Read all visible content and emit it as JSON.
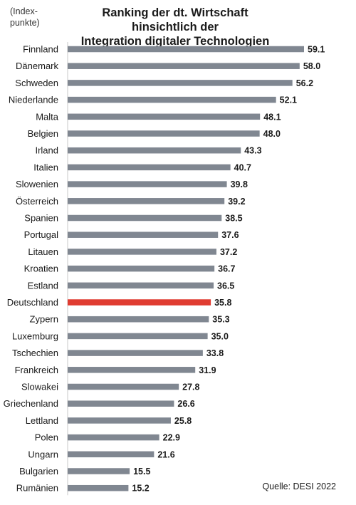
{
  "chart_data": {
    "type": "bar",
    "orientation": "horizontal",
    "title": "Ranking der dt. Wirtschaft hinsichtlich der",
    "subtitle": "Integration digitaler Technologien",
    "unit_label": "(Index-\npunkte)",
    "source": "Quelle: DESI 2022",
    "categories": [
      "Finnland",
      "Dänemark",
      "Schweden",
      "Niederlande",
      "Malta",
      "Belgien",
      "Irland",
      "Italien",
      "Slowenien",
      "Österreich",
      "Spanien",
      "Portugal",
      "Litauen",
      "Kroatien",
      "Estland",
      "Deutschland",
      "Zypern",
      "Luxemburg",
      "Tschechien",
      "Frankreich",
      "Slowakei",
      "Griechenland",
      "Lettland",
      "Polen",
      "Ungarn",
      "Bulgarien",
      "Rumänien"
    ],
    "values": [
      59.1,
      58.0,
      56.2,
      52.1,
      48.1,
      48.0,
      43.3,
      40.7,
      39.8,
      39.2,
      38.5,
      37.6,
      37.2,
      36.7,
      36.5,
      35.8,
      35.3,
      35.0,
      33.8,
      31.9,
      27.8,
      26.6,
      25.8,
      22.9,
      21.6,
      15.5,
      15.2
    ],
    "value_labels": [
      "59.1",
      "58.0",
      "56.2",
      "52.1",
      "48.1",
      "48.0",
      "43.3",
      "40.7",
      "39.8",
      "39.2",
      "38.5",
      "37.6",
      "37.2",
      "36.7",
      "36.5",
      "35.8",
      "35.3",
      "35.0",
      "33.8",
      "31.9",
      "27.8",
      "26.6",
      "25.8",
      "22.9",
      "21.6",
      "15.5",
      "15.2"
    ],
    "highlight": "Deutschland",
    "xlim": [
      0,
      60
    ],
    "grid": false,
    "colors": {
      "bar": "#808791",
      "highlight": "#e03c31",
      "axis": "#c8c8c8"
    }
  }
}
